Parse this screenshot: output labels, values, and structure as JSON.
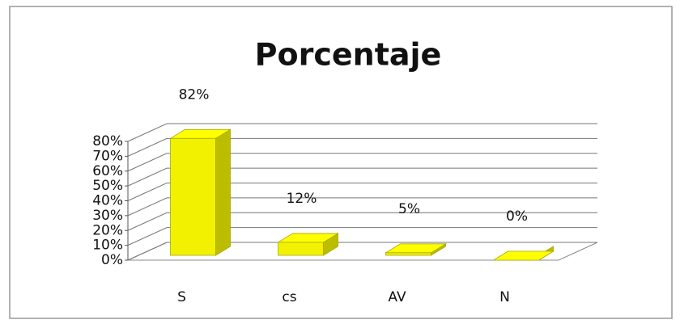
{
  "chart_data": {
    "type": "bar3d",
    "title": "Porcentaje",
    "categories": [
      "S",
      "cs",
      "AV",
      "N"
    ],
    "values": [
      82,
      12,
      5,
      0
    ],
    "value_labels": [
      "82%",
      "12%",
      "5%",
      "0%"
    ],
    "color": "#f2f200",
    "ylim": [
      0,
      80
    ],
    "yticks": [
      {
        "value": 0,
        "label": "0%"
      },
      {
        "value": 10,
        "label": "10%"
      },
      {
        "value": 20,
        "label": "20%"
      },
      {
        "value": 30,
        "label": "30%"
      },
      {
        "value": 40,
        "label": "40%"
      },
      {
        "value": 50,
        "label": "50%"
      },
      {
        "value": 60,
        "label": "60%"
      },
      {
        "value": 70,
        "label": "70%"
      },
      {
        "value": 80,
        "label": "80%"
      }
    ],
    "grid": true
  }
}
